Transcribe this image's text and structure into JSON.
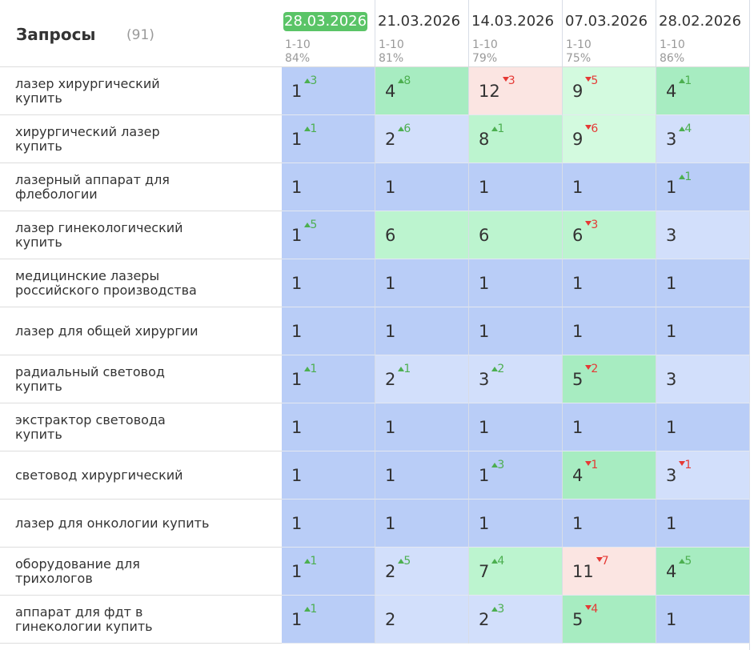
{
  "header": {
    "title": "Запросы",
    "count": "(91)",
    "columns": [
      {
        "date": "28.03.2026",
        "range": "1-10",
        "percent": "84%"
      },
      {
        "date": "21.03.2026",
        "range": "1-10",
        "percent": "81%"
      },
      {
        "date": "14.03.2026",
        "range": "1-10",
        "percent": "79%"
      },
      {
        "date": "07.03.2026",
        "range": "1-10",
        "percent": "75%"
      },
      {
        "date": "28.02.2026",
        "range": "1-10",
        "percent": "86%"
      }
    ]
  },
  "rows": [
    {
      "query": "лазер хирургический\nкупить",
      "cells": [
        {
          "position": 1,
          "change": 3,
          "trend": "up"
        },
        {
          "position": 4,
          "change": 8,
          "trend": "up"
        },
        {
          "position": 12,
          "change": 3,
          "trend": "down"
        },
        {
          "position": 9,
          "change": 5,
          "trend": "down"
        },
        {
          "position": 4,
          "change": 1,
          "trend": "up"
        }
      ]
    },
    {
      "query": "хирургический лазер\nкупить",
      "cells": [
        {
          "position": 1,
          "change": 1,
          "trend": "up"
        },
        {
          "position": 2,
          "change": 6,
          "trend": "up"
        },
        {
          "position": 8,
          "change": 1,
          "trend": "up"
        },
        {
          "position": 9,
          "change": 6,
          "trend": "down"
        },
        {
          "position": 3,
          "change": 4,
          "trend": "up"
        }
      ]
    },
    {
      "query": "лазерный аппарат для\nфлебологии",
      "cells": [
        {
          "position": 1
        },
        {
          "position": 1
        },
        {
          "position": 1
        },
        {
          "position": 1
        },
        {
          "position": 1,
          "change": 1,
          "trend": "up"
        }
      ]
    },
    {
      "query": "лазер гинекологический\nкупить",
      "cells": [
        {
          "position": 1,
          "change": 5,
          "trend": "up"
        },
        {
          "position": 6
        },
        {
          "position": 6
        },
        {
          "position": 6,
          "change": 3,
          "trend": "down"
        },
        {
          "position": 3
        }
      ]
    },
    {
      "query": "медицинские лазеры\nроссийского производства",
      "cells": [
        {
          "position": 1
        },
        {
          "position": 1
        },
        {
          "position": 1
        },
        {
          "position": 1
        },
        {
          "position": 1
        }
      ]
    },
    {
      "query": "лазер для общей хирургии",
      "cells": [
        {
          "position": 1
        },
        {
          "position": 1
        },
        {
          "position": 1
        },
        {
          "position": 1
        },
        {
          "position": 1
        }
      ]
    },
    {
      "query": "радиальный световод\nкупить",
      "cells": [
        {
          "position": 1,
          "change": 1,
          "trend": "up"
        },
        {
          "position": 2,
          "change": 1,
          "trend": "up"
        },
        {
          "position": 3,
          "change": 2,
          "trend": "up"
        },
        {
          "position": 5,
          "change": 2,
          "trend": "down"
        },
        {
          "position": 3
        }
      ]
    },
    {
      "query": "экстрактор световода\nкупить",
      "cells": [
        {
          "position": 1
        },
        {
          "position": 1
        },
        {
          "position": 1
        },
        {
          "position": 1
        },
        {
          "position": 1
        }
      ]
    },
    {
      "query": "световод хирургический",
      "cells": [
        {
          "position": 1
        },
        {
          "position": 1
        },
        {
          "position": 1,
          "change": 3,
          "trend": "up"
        },
        {
          "position": 4,
          "change": 1,
          "trend": "down"
        },
        {
          "position": 3,
          "change": 1,
          "trend": "down"
        }
      ]
    },
    {
      "query": "лазер для онкологии купить",
      "cells": [
        {
          "position": 1
        },
        {
          "position": 1
        },
        {
          "position": 1
        },
        {
          "position": 1
        },
        {
          "position": 1
        }
      ]
    },
    {
      "query": "оборудование для\nтрихологов",
      "cells": [
        {
          "position": 1,
          "change": 1,
          "trend": "up"
        },
        {
          "position": 2,
          "change": 5,
          "trend": "up"
        },
        {
          "position": 7,
          "change": 4,
          "trend": "up"
        },
        {
          "position": 11,
          "change": 7,
          "trend": "down"
        },
        {
          "position": 4,
          "change": 5,
          "trend": "up"
        }
      ]
    },
    {
      "query": "аппарат для фдт в\nгинекологии купить",
      "cells": [
        {
          "position": 1,
          "change": 1,
          "trend": "up"
        },
        {
          "position": 2
        },
        {
          "position": 2,
          "change": 3,
          "trend": "up"
        },
        {
          "position": 5,
          "change": 4,
          "trend": "down"
        },
        {
          "position": 1
        }
      ]
    }
  ]
}
